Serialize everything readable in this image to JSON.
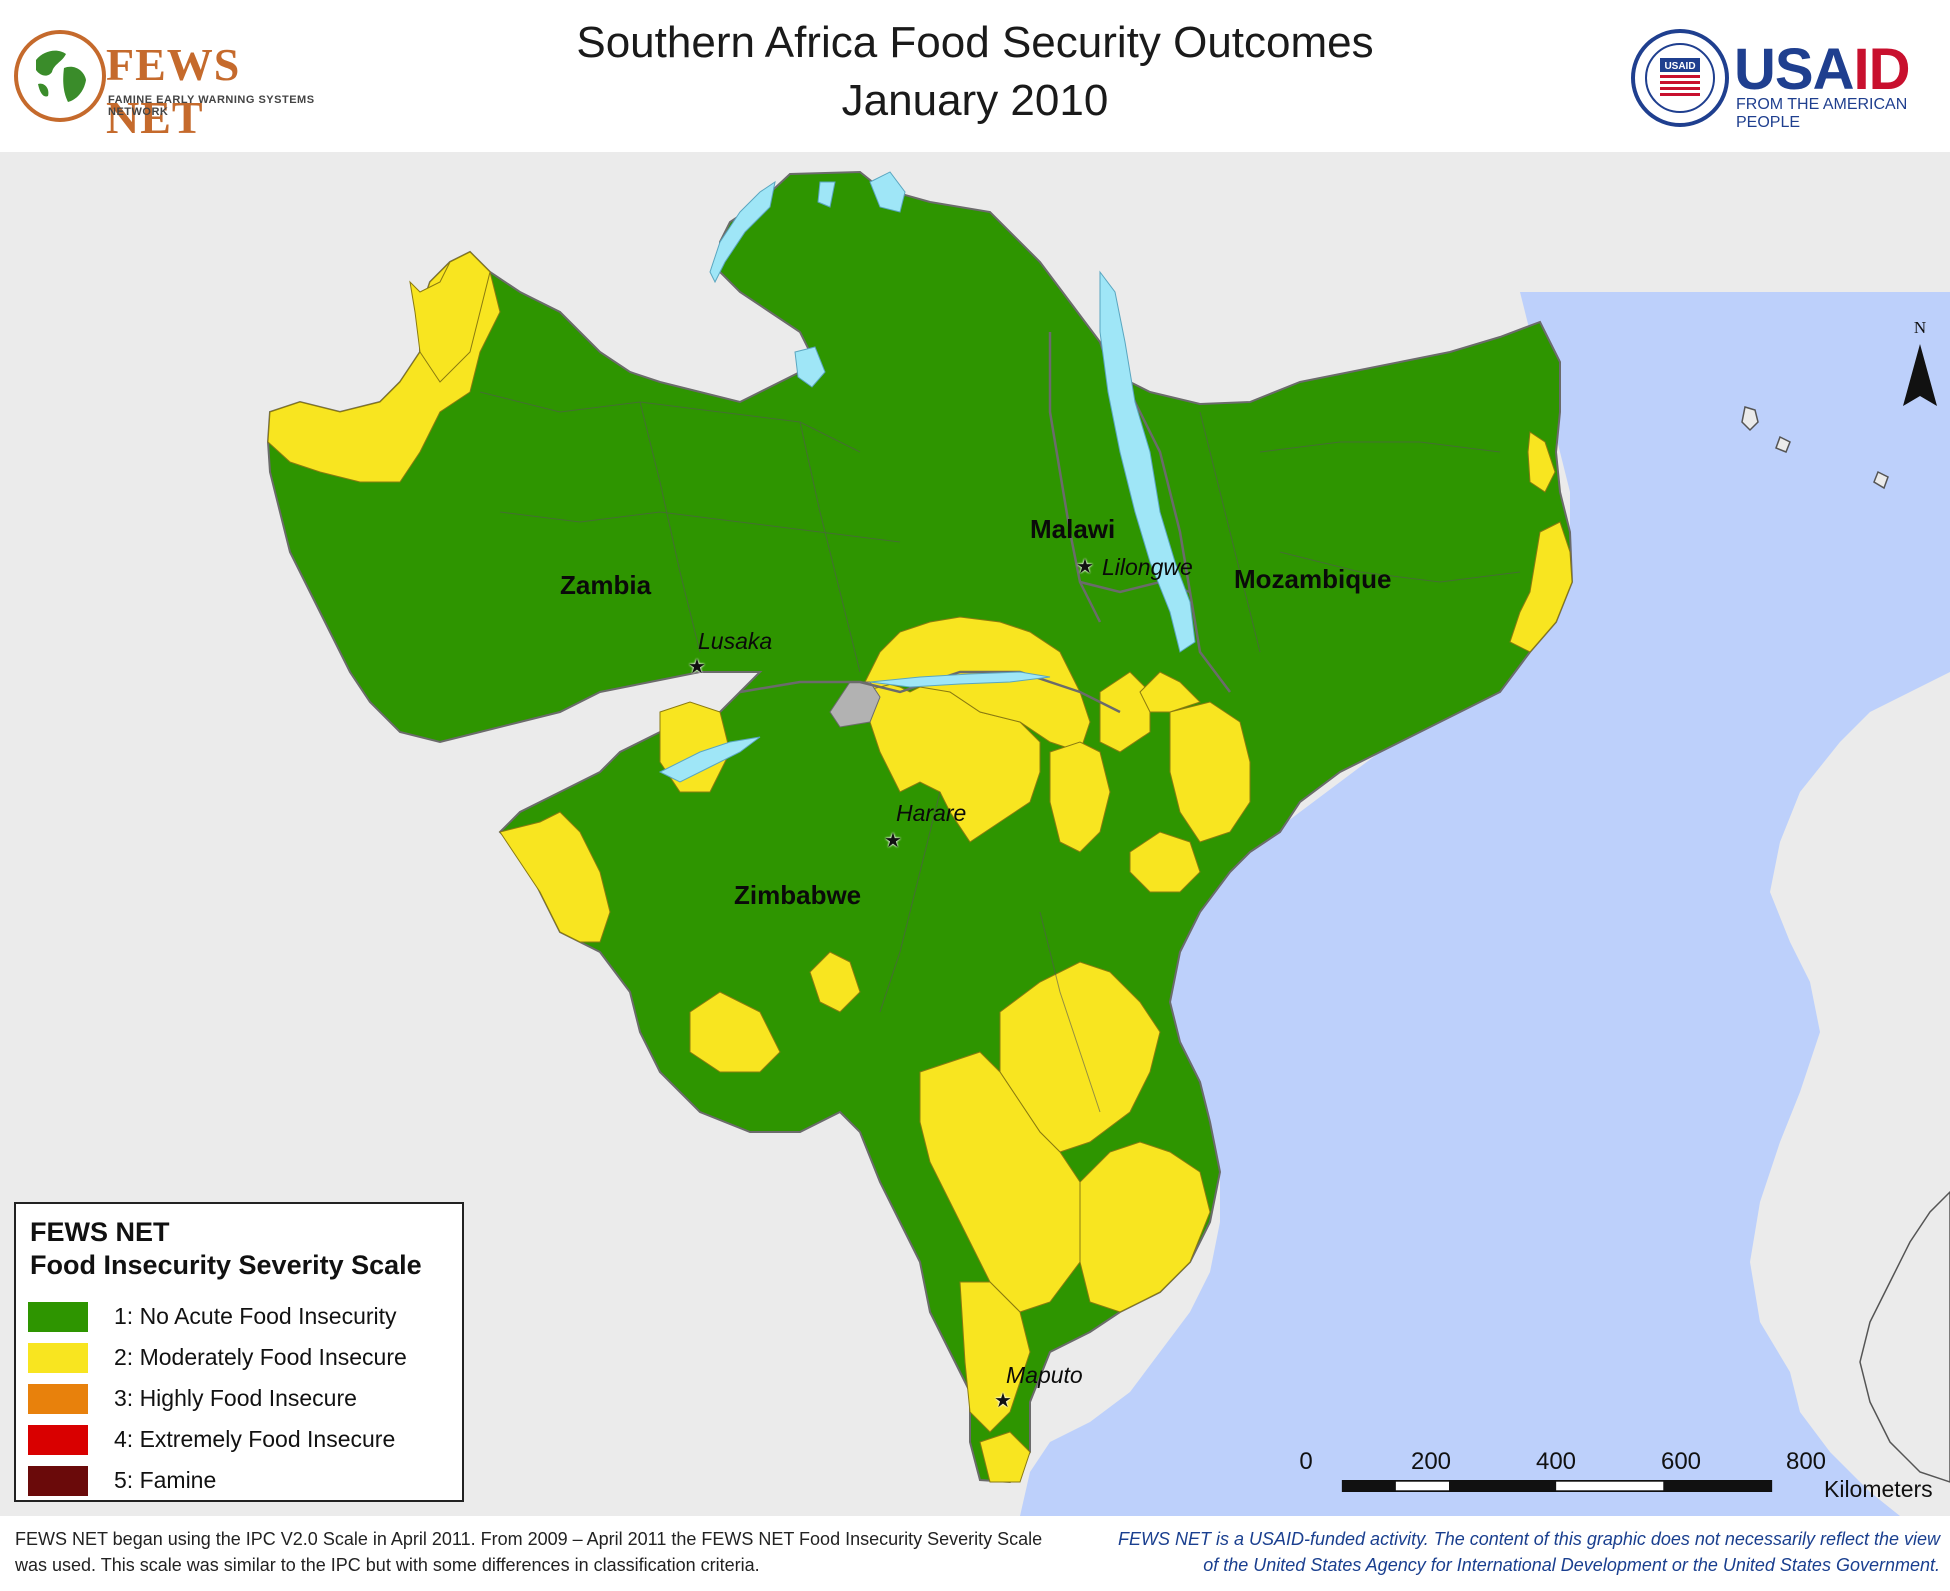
{
  "header": {
    "title_line1": "Southern Africa Food Security Outcomes",
    "title_line2": "January 2010",
    "fews_logo_name": "FEWS NET",
    "fews_logo_subtitle": "FAMINE EARLY WARNING SYSTEMS NETWORK",
    "usaid_logo_name_part1": "USA",
    "usaid_logo_name_part2": "ID",
    "usaid_logo_subtitle": "FROM THE AMERICAN PEOPLE",
    "usaid_seal_text": "USAID"
  },
  "map": {
    "north_label": "N",
    "colors": {
      "ocean": "#bdd0fb",
      "land_other": "#ebebeb",
      "phase1": "#2e9500",
      "phase2": "#f8e520",
      "no_data": "#b2b2b2",
      "lake": "#9fe6f7",
      "border": "#6b6b6b"
    },
    "countries": [
      {
        "name": "Zambia"
      },
      {
        "name": "Malawi"
      },
      {
        "name": "Mozambique"
      },
      {
        "name": "Zimbabwe"
      }
    ],
    "capitals": [
      {
        "name": "Lusaka"
      },
      {
        "name": "Lilongwe"
      },
      {
        "name": "Harare"
      },
      {
        "name": "Maputo"
      }
    ]
  },
  "legend": {
    "title_line1": "FEWS NET",
    "title_line2": "Food Insecurity Severity Scale",
    "items": [
      {
        "label": "1: No Acute Food Insecurity",
        "color": "#2e9500"
      },
      {
        "label": "2: Moderately Food Insecure",
        "color": "#f8e520"
      },
      {
        "label": "3: Highly Food Insecure",
        "color": "#e8810c"
      },
      {
        "label": "4: Extremely Food Insecure",
        "color": "#d90000"
      },
      {
        "label": "5: Famine",
        "color": "#6a0a0a"
      }
    ]
  },
  "scale_bar": {
    "ticks": [
      "0",
      "200",
      "400",
      "600",
      "800"
    ],
    "unit": "Kilometers"
  },
  "footer": {
    "note_left": "FEWS NET began using the IPC V2.0 Scale in April 2011. From 2009 – April 2011 the FEWS NET Food Insecurity Severity Scale was used. This scale was similar to the IPC but with some differences in classification criteria.",
    "note_right": "FEWS NET is a USAID-funded activity. The content of this graphic does not necessarily reflect the view of the United States Agency for International Development or the United States Government."
  }
}
